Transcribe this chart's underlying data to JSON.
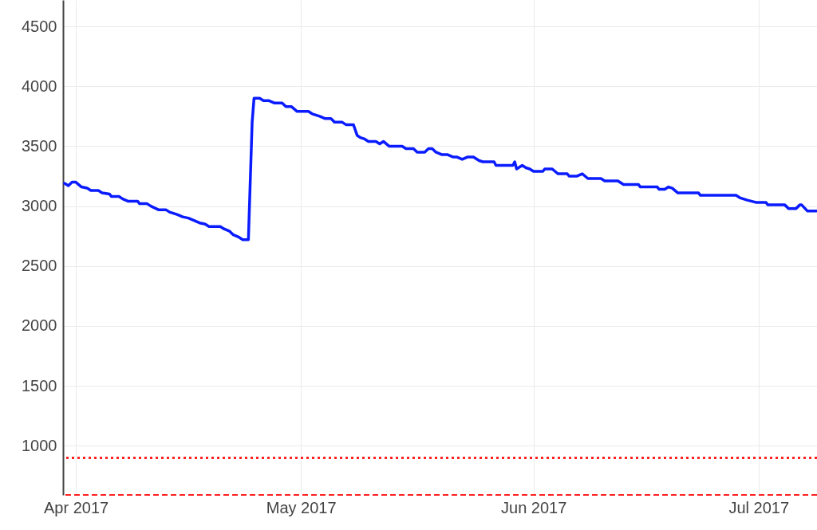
{
  "chart_data": {
    "type": "line",
    "xlim": [
      "2017-03-30T07:00",
      "2017-07-08T19:00"
    ],
    "xticks": [
      {
        "value": "2017-04-01",
        "label": "Apr 2017"
      },
      {
        "value": "2017-05-01",
        "label": "May 2017"
      },
      {
        "value": "2017-06-01",
        "label": "Jun 2017"
      },
      {
        "value": "2017-07-01",
        "label": "Jul 2017"
      }
    ],
    "ylim": [
      590,
      4720
    ],
    "yticks": [
      1000,
      1500,
      2000,
      2500,
      3000,
      3500,
      4000,
      4500
    ],
    "grid": true,
    "line_style": "solid",
    "ref_lines": [
      {
        "axis": "y",
        "value": 900,
        "color": "#ff2020",
        "line_style": "dotted"
      },
      {
        "axis": "y",
        "value": 590,
        "color": "#ff2020",
        "line_style": "dashed"
      }
    ],
    "series": [
      {
        "color": "#0a1cff",
        "x": [
          "2017-03-30T12:00",
          "2017-03-31T00:00",
          "2017-03-31T12:00",
          "2017-04-01T00:00",
          "2017-04-01T18:00",
          "2017-04-02T12:00",
          "2017-04-03T00:00",
          "2017-04-04T00:00",
          "2017-04-04T12:00",
          "2017-04-05T12:00",
          "2017-04-05T18:00",
          "2017-04-06T18:00",
          "2017-04-07T06:00",
          "2017-04-08T00:00",
          "2017-04-09T06:00",
          "2017-04-09T12:00",
          "2017-04-10T12:00",
          "2017-04-11T00:00",
          "2017-04-12T00:00",
          "2017-04-13T00:00",
          "2017-04-13T12:00",
          "2017-04-14T12:00",
          "2017-04-15T06:00",
          "2017-04-16T00:00",
          "2017-04-16T18:00",
          "2017-04-17T12:00",
          "2017-04-18T06:00",
          "2017-04-18T18:00",
          "2017-04-20T06:00",
          "2017-04-20T18:00",
          "2017-04-21T12:00",
          "2017-04-22T00:00",
          "2017-04-22T18:00",
          "2017-04-23T06:00",
          "2017-04-24T00:00",
          "2017-04-24T12:00",
          "2017-04-24T18:00",
          "2017-04-25T12:00",
          "2017-04-26T00:00",
          "2017-04-26T18:00",
          "2017-04-27T12:00",
          "2017-04-28T12:00",
          "2017-04-29T00:00",
          "2017-04-29T18:00",
          "2017-04-30T12:00",
          "2017-05-02T00:00",
          "2017-05-02T12:00",
          "2017-05-03T12:00",
          "2017-05-04T06:00",
          "2017-05-05T00:00",
          "2017-05-05T12:00",
          "2017-05-06T12:00",
          "2017-05-07T00:00",
          "2017-05-08T00:00",
          "2017-05-08T12:00",
          "2017-05-09T00:00",
          "2017-05-09T12:00",
          "2017-05-10T00:00",
          "2017-05-11T00:00",
          "2017-05-11T12:00",
          "2017-05-12T00:00",
          "2017-05-12T18:00",
          "2017-05-14T12:00",
          "2017-05-15T00:00",
          "2017-05-16T00:00",
          "2017-05-16T12:00",
          "2017-05-17T12:00",
          "2017-05-18T00:00",
          "2017-05-18T12:00",
          "2017-05-19T00:00",
          "2017-05-19T18:00",
          "2017-05-20T12:00",
          "2017-05-21T06:00",
          "2017-05-21T18:00",
          "2017-05-22T12:00",
          "2017-05-23T06:00",
          "2017-05-24T00:00",
          "2017-05-24T18:00",
          "2017-05-25T06:00",
          "2017-05-26T18:00",
          "2017-05-27T00:00",
          "2017-05-29T06:00",
          "2017-05-29T12:00",
          "2017-05-29T18:00",
          "2017-05-30T12:00",
          "2017-05-31T00:00",
          "2017-05-31T12:00",
          "2017-06-01T00:00",
          "2017-06-02T06:00",
          "2017-06-02T12:00",
          "2017-06-03T12:00",
          "2017-06-04T06:00",
          "2017-06-05T12:00",
          "2017-06-05T18:00",
          "2017-06-06T18:00",
          "2017-06-07T12:00",
          "2017-06-08T06:00",
          "2017-06-10T00:00",
          "2017-06-10T12:00",
          "2017-06-12T06:00",
          "2017-06-13T00:00",
          "2017-06-15T00:00",
          "2017-06-15T06:00",
          "2017-06-17T12:00",
          "2017-06-17T18:00",
          "2017-06-18T12:00",
          "2017-06-19T00:00",
          "2017-06-19T12:00",
          "2017-06-20T06:00",
          "2017-06-23T00:00",
          "2017-06-23T06:00",
          "2017-06-28T00:00",
          "2017-06-28T12:00",
          "2017-06-29T12:00",
          "2017-06-30T18:00",
          "2017-07-02T00:00",
          "2017-07-02T06:00",
          "2017-07-04T12:00",
          "2017-07-05T00:00",
          "2017-07-06T00:00",
          "2017-07-06T12:00",
          "2017-07-06T18:00",
          "2017-07-07T12:00",
          "2017-07-08T18:00"
        ],
        "values": [
          3190,
          3170,
          3200,
          3200,
          3160,
          3150,
          3130,
          3130,
          3110,
          3100,
          3080,
          3080,
          3060,
          3040,
          3040,
          3020,
          3020,
          3000,
          2970,
          2970,
          2950,
          2930,
          2910,
          2900,
          2880,
          2860,
          2850,
          2830,
          2830,
          2810,
          2790,
          2760,
          2740,
          2720,
          2720,
          3700,
          3900,
          3900,
          3880,
          3880,
          3860,
          3860,
          3830,
          3830,
          3790,
          3790,
          3770,
          3750,
          3730,
          3730,
          3700,
          3700,
          3680,
          3680,
          3590,
          3570,
          3560,
          3540,
          3540,
          3520,
          3540,
          3500,
          3500,
          3480,
          3480,
          3450,
          3450,
          3480,
          3480,
          3450,
          3430,
          3430,
          3410,
          3410,
          3390,
          3410,
          3410,
          3380,
          3370,
          3370,
          3340,
          3340,
          3370,
          3310,
          3340,
          3320,
          3310,
          3290,
          3290,
          3310,
          3310,
          3270,
          3270,
          3250,
          3250,
          3270,
          3230,
          3230,
          3210,
          3210,
          3180,
          3180,
          3160,
          3160,
          3140,
          3140,
          3160,
          3150,
          3110,
          3110,
          3090,
          3090,
          3070,
          3050,
          3030,
          3030,
          3010,
          3010,
          2980,
          2980,
          3010,
          3010,
          2960,
          2960
        ]
      }
    ]
  }
}
